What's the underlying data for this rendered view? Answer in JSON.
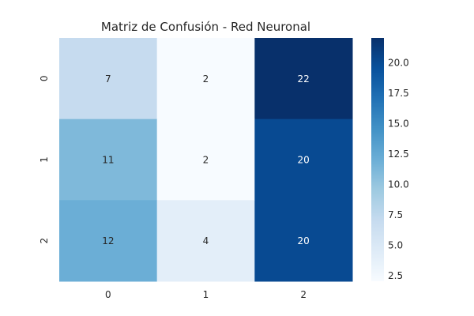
{
  "chart_data": {
    "type": "heatmap",
    "title": "Matriz de Confusión - Red Neuronal",
    "x_categories": [
      "0",
      "1",
      "2"
    ],
    "y_categories": [
      "0",
      "1",
      "2"
    ],
    "values": [
      [
        7,
        2,
        22
      ],
      [
        11,
        2,
        20
      ],
      [
        12,
        4,
        20
      ]
    ],
    "colormap": "Blues",
    "color_range": [
      2,
      22
    ],
    "colorbar_ticks": [
      "2.5",
      "5.0",
      "7.5",
      "10.0",
      "12.5",
      "15.0",
      "17.5",
      "20.0"
    ],
    "annotated": true,
    "grid": false
  }
}
